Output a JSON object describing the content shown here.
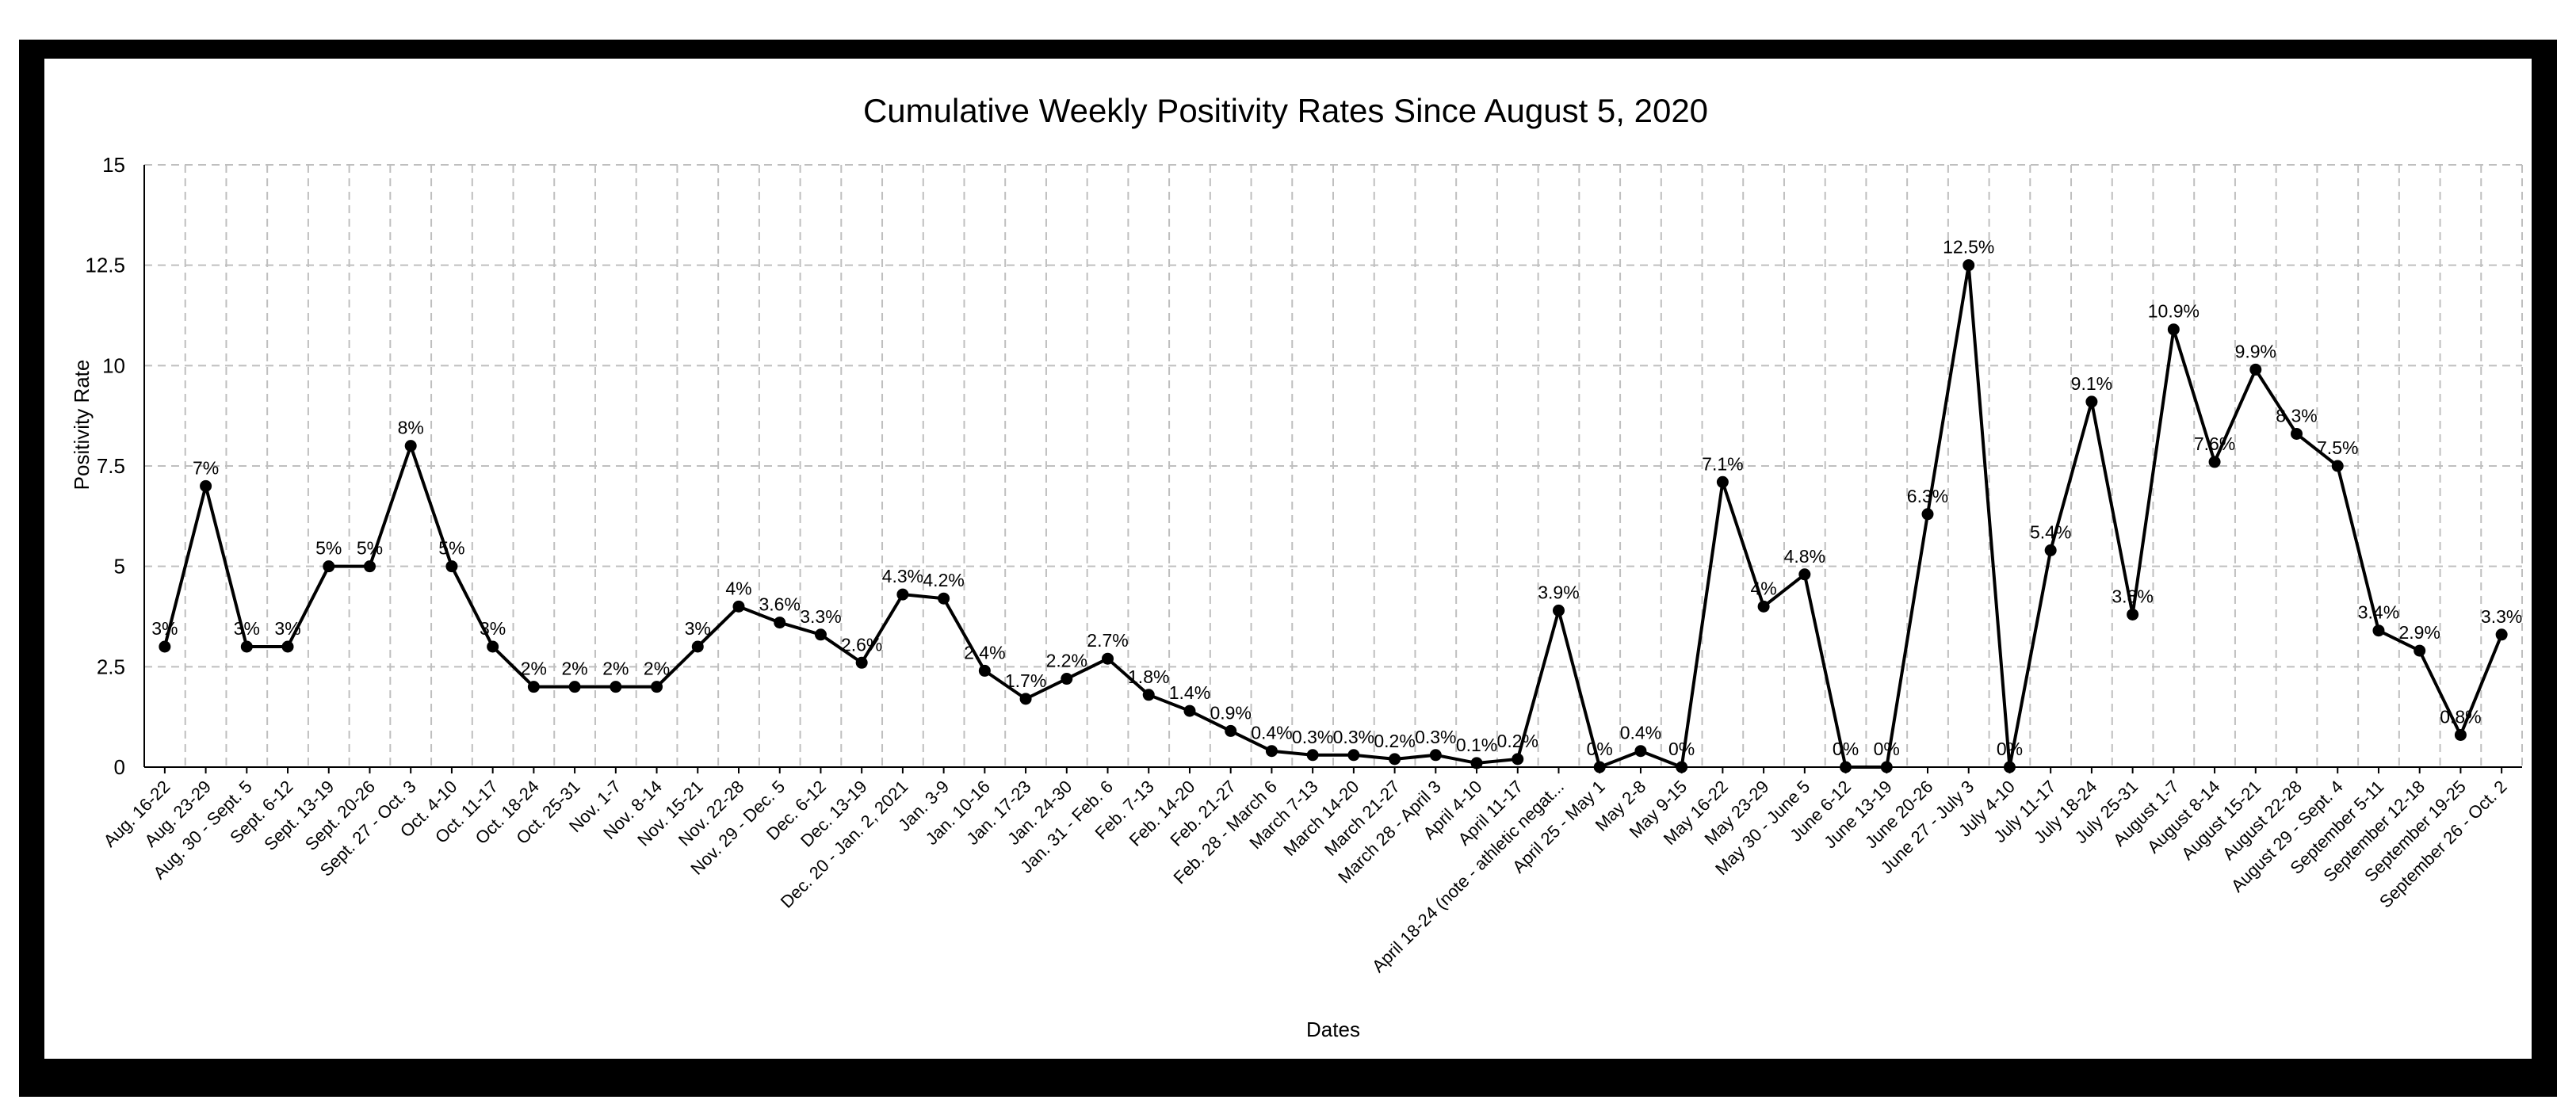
{
  "chart_data": {
    "type": "line",
    "title": "Cumulative Weekly Positivity Rates Since August 5, 2020",
    "xlabel": "Dates",
    "ylabel": "Positivity Rate",
    "ylim": [
      0,
      15
    ],
    "yticks": [
      "0",
      "2.5",
      "5",
      "7.5",
      "10",
      "12.5",
      "15"
    ],
    "grid": true,
    "legend": "none",
    "colors": {
      "line": "#000000",
      "grid": "#bfbfbf",
      "frame": "#000000"
    },
    "categories": [
      "Aug. 16-22",
      "Aug. 23-29",
      "Aug. 30 - Sept. 5",
      "Sept. 6-12",
      "Sept. 13-19",
      "Sept. 20-26",
      "Sept. 27 - Oct. 3",
      "Oct. 4-10",
      "Oct. 11-17",
      "Oct. 18-24",
      "Oct. 25-31",
      "Nov. 1-7",
      "Nov. 8-14",
      "Nov. 15-21",
      "Nov. 22-28",
      "Nov. 29 - Dec. 5",
      "Dec. 6-12",
      "Dec. 13-19",
      "Dec. 20 - Jan. 2, 2021",
      "Jan. 3-9",
      "Jan. 10-16",
      "Jan. 17-23",
      "Jan. 24-30",
      "Jan. 31 - Feb. 6",
      "Feb. 7-13",
      "Feb. 14-20",
      "Feb. 21-27",
      "Feb. 28 - March 6",
      "March 7-13",
      "March 14-20",
      "March 21-27",
      "March 28 - April 3",
      "April 4-10",
      "April 11-17",
      "April 18-24 (note - athletic negat...",
      "April 25 - May 1",
      "May 2-8",
      "May 9-15",
      "May 16-22",
      "May 23-29",
      "May 30 - June 5",
      "June 6-12",
      "June 13-19",
      "June 20-26",
      "June 27 - July 3",
      "July 4-10",
      "July 11-17",
      "July 18-24",
      "July 25-31",
      "August 1-7",
      "August 8-14",
      "August 15-21",
      "August 22-28",
      "August 29 - Sept. 4",
      "September 5-11",
      "September 12-18",
      "September 19-25",
      "September 26 - Oct. 2"
    ],
    "values": [
      3,
      7,
      3,
      3,
      5,
      5,
      8,
      5,
      3,
      2,
      2,
      2,
      2,
      3,
      4,
      3.6,
      3.3,
      2.6,
      4.3,
      4.2,
      2.4,
      1.7,
      2.2,
      2.7,
      1.8,
      1.4,
      0.9,
      0.4,
      0.3,
      0.3,
      0.2,
      0.3,
      0.1,
      0.2,
      3.9,
      0,
      0.4,
      0,
      7.1,
      4,
      4.8,
      0,
      0,
      6.3,
      12.5,
      0,
      5.4,
      9.1,
      3.8,
      10.9,
      7.6,
      9.9,
      8.3,
      7.5,
      3.4,
      2.9,
      0.8,
      3.3
    ],
    "data_labels": [
      "3%",
      "7%",
      "3%",
      "3%",
      "5%",
      "5%",
      "8%",
      "5%",
      "3%",
      "2%",
      "2%",
      "2%",
      "2%",
      "3%",
      "4%",
      "3.6%",
      "3.3%",
      "2.6%",
      "4.3%",
      "4.2%",
      "2.4%",
      "1.7%",
      "2.2%",
      "2.7%",
      "1.8%",
      "1.4%",
      "0.9%",
      "0.4%",
      "0.3%",
      "0.3%",
      "0.2%",
      "0.3%",
      "0.1%",
      "0.2%",
      "3.9%",
      "0%",
      "0.4%",
      "0%",
      "7.1%",
      "4%",
      "4.8%",
      "0%",
      "0%",
      "6.3%",
      "12.5%",
      "0%",
      "5.4%",
      "9.1%",
      "3.8%",
      "10.9%",
      "7.6%",
      "9.9%",
      "8.3%",
      "7.5%",
      "3.4%",
      "2.9%",
      "0.8%",
      "3.3%"
    ]
  }
}
